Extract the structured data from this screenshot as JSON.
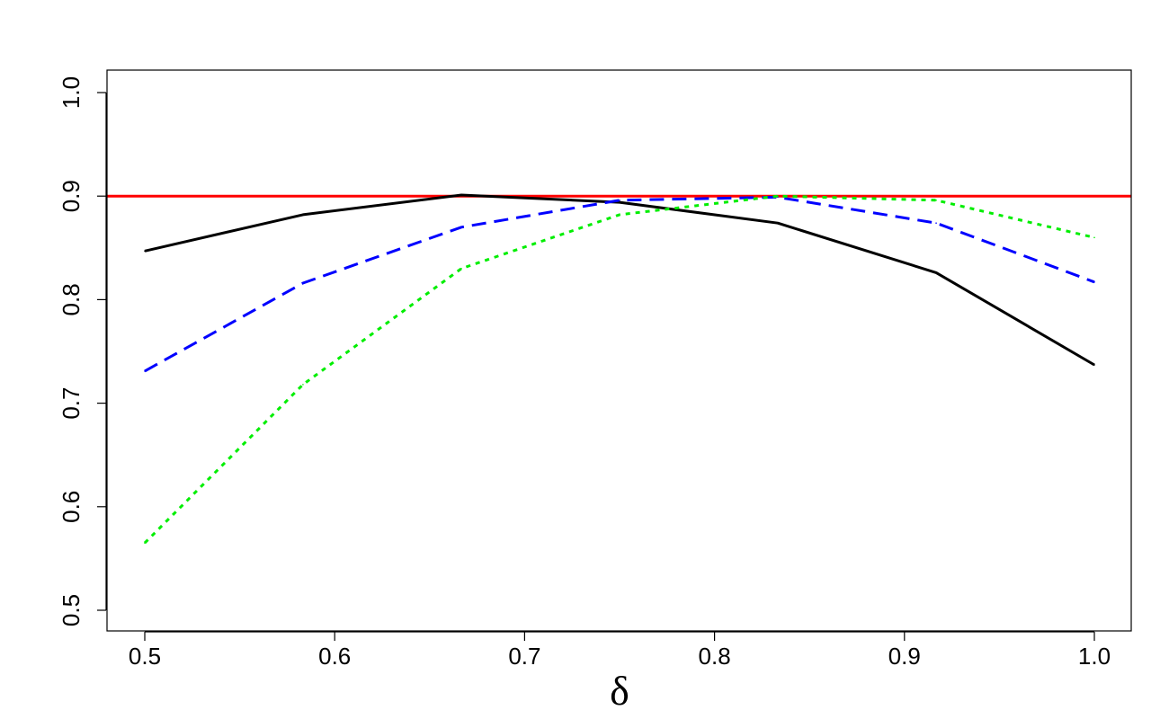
{
  "chart_data": {
    "type": "line",
    "title": "",
    "xlabel": "δ",
    "ylabel": "",
    "xlim": [
      0.5,
      1.0
    ],
    "ylim": [
      0.5,
      1.0
    ],
    "x_ticks": [
      "0.5",
      "0.6",
      "0.7",
      "0.8",
      "0.9",
      "1.0"
    ],
    "y_ticks": [
      "0.5",
      "0.6",
      "0.7",
      "0.8",
      "0.9",
      "1.0"
    ],
    "grid": false,
    "legend": "none",
    "x": [
      0.5,
      0.5833,
      0.6667,
      0.75,
      0.8333,
      0.9167,
      1.0
    ],
    "series": [
      {
        "style": "solid",
        "color": "#000000",
        "values": [
          0.847,
          0.882,
          0.901,
          0.894,
          0.874,
          0.826,
          0.737
        ]
      },
      {
        "style": "dashed",
        "color": "#0000ff",
        "values": [
          0.731,
          0.816,
          0.87,
          0.896,
          0.899,
          0.874,
          0.817
        ]
      },
      {
        "style": "dotted",
        "color": "#00ee00",
        "values": [
          0.565,
          0.718,
          0.83,
          0.882,
          0.9,
          0.896,
          0.86
        ]
      }
    ],
    "reference_line": {
      "y": 0.9,
      "color": "#ff0000"
    }
  }
}
